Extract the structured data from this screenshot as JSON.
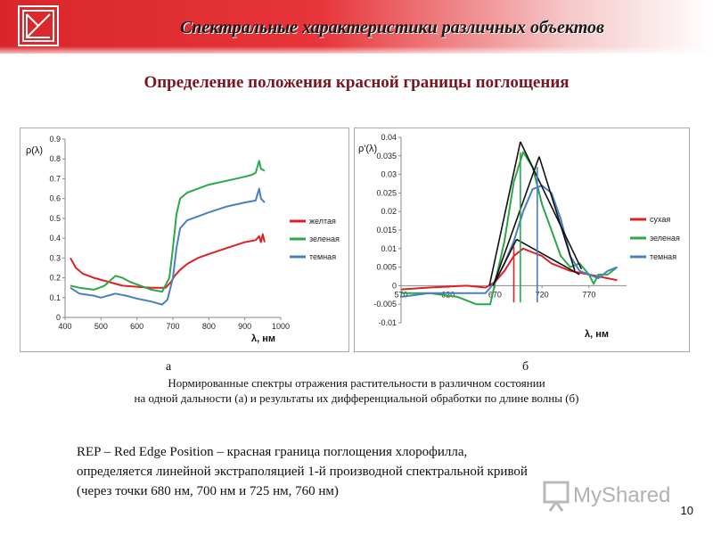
{
  "header": {
    "title": "Спектральные характеристики различных объектов",
    "logo_icon": "square-envelope-logo-icon"
  },
  "subtitle": "Определение положения красной границы поглощения",
  "chart_labels": {
    "a": "а",
    "b": "б"
  },
  "caption": {
    "line1": "Нормированные спектры отражения растительности в различном состоянии",
    "line2": "на одной дальности (а) и результаты их дифференциальной обработки по длине волны (б)"
  },
  "rep_text": {
    "line1": "REP – Red Edge Position – красная граница поглощения хлорофилла,",
    "line2": "определяется линейной экстраполяцией 1-й производной спектральной кривой",
    "line3": "(через точки 680 нм, 700 нм и 725 нм, 760 нм)"
  },
  "watermark": {
    "text": "MyShared"
  },
  "page_number": "10",
  "colors": {
    "red": "#e02020",
    "green": "#2aa84a",
    "blue": "#4a7fc0",
    "title_red": "#7a1620"
  },
  "chart_data": [
    {
      "type": "line",
      "ylabel": "ρ(λ)",
      "xlabel": "λ, нм",
      "xlim": [
        400,
        1000
      ],
      "ylim": [
        0,
        0.9
      ],
      "xticks": [
        400,
        500,
        600,
        700,
        800,
        900,
        1000
      ],
      "xtick_labels": [
        "400",
        "500",
        "600",
        "700",
        "800",
        "900",
        "1000"
      ],
      "yticks": [
        0,
        0.1,
        0.2,
        0.3,
        0.4,
        0.5,
        0.6,
        0.7,
        0.8,
        0.9
      ],
      "ytick_labels": [
        "0",
        "0.1",
        "0.2",
        "0.3",
        "0.4",
        "0.5",
        "0.6",
        "0.7",
        "0.8",
        "0.9"
      ],
      "legend_position": "right",
      "series": [
        {
          "name": "желтая",
          "color": "#e02020",
          "x": [
            415,
            430,
            450,
            480,
            520,
            560,
            600,
            640,
            680,
            695,
            705,
            720,
            740,
            770,
            800,
            850,
            900,
            930,
            940,
            945,
            950,
            955
          ],
          "y": [
            0.3,
            0.25,
            0.22,
            0.2,
            0.18,
            0.16,
            0.155,
            0.15,
            0.15,
            0.18,
            0.21,
            0.24,
            0.27,
            0.3,
            0.32,
            0.35,
            0.38,
            0.39,
            0.41,
            0.38,
            0.42,
            0.38
          ]
        },
        {
          "name": "зеленая",
          "color": "#2aa84a",
          "x": [
            415,
            440,
            480,
            510,
            540,
            560,
            580,
            610,
            640,
            670,
            690,
            700,
            710,
            720,
            740,
            770,
            800,
            850,
            900,
            920,
            930,
            940,
            945,
            955
          ],
          "y": [
            0.16,
            0.15,
            0.14,
            0.16,
            0.21,
            0.2,
            0.18,
            0.16,
            0.14,
            0.13,
            0.2,
            0.35,
            0.52,
            0.6,
            0.63,
            0.65,
            0.67,
            0.69,
            0.71,
            0.72,
            0.73,
            0.79,
            0.75,
            0.74
          ]
        },
        {
          "name": "темная",
          "color": "#4a7fc0",
          "x": [
            415,
            440,
            480,
            500,
            540,
            570,
            600,
            640,
            670,
            685,
            700,
            710,
            720,
            740,
            770,
            800,
            850,
            900,
            930,
            940,
            945,
            955
          ],
          "y": [
            0.15,
            0.12,
            0.11,
            0.1,
            0.12,
            0.11,
            0.095,
            0.08,
            0.065,
            0.09,
            0.2,
            0.35,
            0.45,
            0.49,
            0.51,
            0.53,
            0.56,
            0.58,
            0.59,
            0.65,
            0.6,
            0.58
          ]
        }
      ]
    },
    {
      "type": "line",
      "ylabel": "ρ'(λ)",
      "xlabel": "λ, нм",
      "xlim": [
        570,
        810
      ],
      "ylim": [
        -0.01,
        0.04
      ],
      "xticks": [
        570,
        620,
        670,
        720,
        770
      ],
      "xtick_labels": [
        "570",
        "620",
        "670",
        "720",
        "770"
      ],
      "yticks": [
        -0.01,
        -0.005,
        0,
        0.005,
        0.01,
        0.015,
        0.02,
        0.025,
        0.03,
        0.035,
        0.04
      ],
      "ytick_labels": [
        "-0.01",
        "-0.005",
        "0",
        "0.005",
        "0.01",
        "0.015",
        "0.02",
        "0.025",
        "0.03",
        "0.035",
        "0.04"
      ],
      "legend_position": "right",
      "series": [
        {
          "name": "сухая",
          "color": "#e02020",
          "x": [
            570,
            600,
            640,
            660,
            670,
            680,
            690,
            700,
            710,
            720,
            730,
            750,
            770,
            790,
            800
          ],
          "y": [
            -0.001,
            -0.0005,
            0,
            -0.0005,
            0.001,
            0.004,
            0.008,
            0.01,
            0.009,
            0.008,
            0.006,
            0.004,
            0.003,
            0.002,
            0.0015
          ]
        },
        {
          "name": "зеленая",
          "color": "#2aa84a",
          "x": [
            570,
            600,
            630,
            650,
            665,
            680,
            690,
            700,
            710,
            720,
            730,
            740,
            750,
            760,
            770,
            775,
            780,
            790,
            800
          ],
          "y": [
            -0.002,
            -0.002,
            -0.003,
            -0.005,
            -0.005,
            0.012,
            0.028,
            0.036,
            0.032,
            0.022,
            0.015,
            0.008,
            0.005,
            0.006,
            0.003,
            0.0005,
            0.003,
            0.003,
            0.005
          ]
        },
        {
          "name": "темная",
          "color": "#4a7fc0",
          "x": [
            570,
            600,
            640,
            660,
            670,
            680,
            690,
            700,
            710,
            720,
            730,
            740,
            750,
            760,
            770,
            780,
            790,
            800
          ],
          "y": [
            -0.003,
            -0.002,
            -0.002,
            -0.002,
            0.001,
            0.006,
            0.012,
            0.02,
            0.026,
            0.027,
            0.025,
            0.018,
            0.008,
            0.004,
            0.003,
            0.002,
            0.004,
            0.005
          ]
        }
      ]
    }
  ]
}
